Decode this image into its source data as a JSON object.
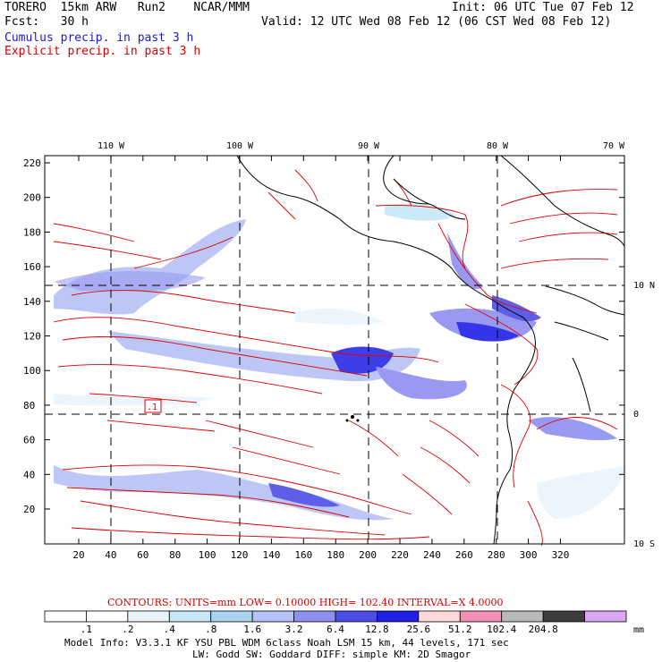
{
  "header": {
    "left1": "TORERO  15km ARW   Run2    NCAR/MMM",
    "left2": "Fcst:   30 h",
    "right1": "Init: 06 UTC Tue 07 Feb 12",
    "right2": "Valid: 12 UTC Wed 08 Feb 12 (06 CST Wed 08 Feb 12)",
    "legend1": "Cumulus precip. in past 3 h",
    "legend2": "Explicit precip. in past 3 h"
  },
  "map": {
    "top_lon_labels": [
      "110 W",
      "100 W",
      "90 W",
      "80 W",
      "70 W"
    ],
    "right_lat_labels": [
      "10 N",
      "0",
      "10 S"
    ],
    "y_ticks": [
      "220",
      "200",
      "180",
      "160",
      "140",
      "120",
      "100",
      "80",
      "60",
      "40",
      "20"
    ],
    "x_ticks": [
      "20",
      "40",
      "60",
      "80",
      "100",
      "120",
      "140",
      "160",
      "180",
      "200",
      "220",
      "240",
      "260",
      "280",
      "300",
      "320"
    ],
    "box_label": ".1"
  },
  "footer": {
    "contours": "CONTOURS:  UNITS=mm  LOW= 0.10000       HIGH=  102.40       INTERVAL=X  4.0000",
    "scale_labels": [
      ".1",
      ".2",
      ".4",
      ".8",
      "1.6",
      "3.2",
      "6.4",
      "12.8",
      "25.6",
      "51.2",
      "102.4",
      "204.8"
    ],
    "scale_colors": [
      "#ffffff",
      "#ffffff",
      "#e9f4fb",
      "#c7e7f7",
      "#a9d4ef",
      "#b6c1f5",
      "#8e8ff0",
      "#4d4de6",
      "#1f1fe6",
      "#ffd9d9",
      "#f48fb5",
      "#b8b8b8",
      "#3c3c3c",
      "#d9a8f0"
    ],
    "scale_unit": "mm",
    "info1": "Model Info: V3.3.1    KF     YSU PBL   WDM 6class   Noah LSM  15 km,    44 levels,   171 sec",
    "info2": "LW: Godd SW: Goddard DIFF: simple KM: 2D Smagor"
  }
}
